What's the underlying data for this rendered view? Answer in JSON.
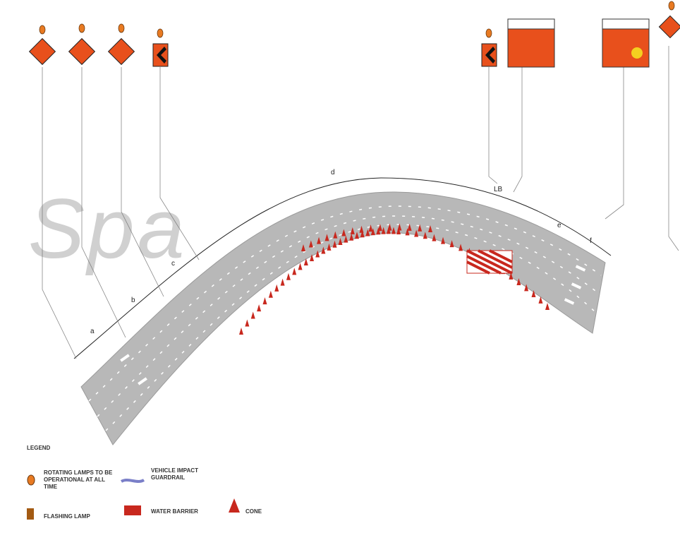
{
  "watermark": "Spa",
  "dimensions": {
    "a": "a",
    "b": "b",
    "c": "c",
    "d": "d",
    "lb": "LB",
    "e": "e",
    "f": "f"
  },
  "legend": {
    "title": "LEGEND",
    "rotating_lamps": "ROTATING LAMPS TO BE OPERATIONAL AT ALL TIME",
    "guardrail": "VEHICLE IMPACT GUARDRAIL",
    "flashing_lamp": "FLASHING LAMP",
    "water_barrier": "WATER BARRIER",
    "cone": "CONE"
  },
  "colors": {
    "sign": "#e8501c",
    "road": "#b5b5b5",
    "cone": "#c8281e"
  }
}
